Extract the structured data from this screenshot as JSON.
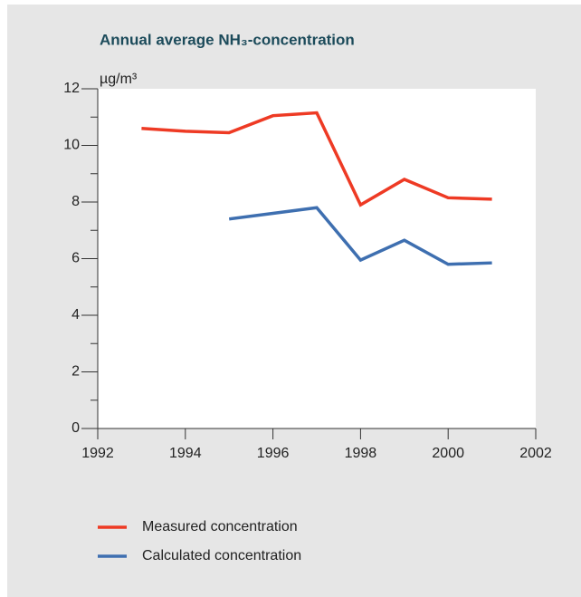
{
  "chart_data": {
    "type": "line",
    "title": "Annual average NH₃-concentration",
    "y_label": "µg/m³",
    "x": [
      1993,
      1994,
      1995,
      1996,
      1997,
      1998,
      1999,
      2000,
      2001
    ],
    "series": [
      {
        "name": "Measured concentration",
        "color": "#ee3a24",
        "values": [
          10.6,
          10.5,
          10.45,
          11.05,
          11.15,
          7.9,
          8.8,
          8.15,
          8.1
        ]
      },
      {
        "name": "Calculated concentration",
        "color": "#3e6fb0",
        "values": [
          null,
          null,
          7.4,
          7.6,
          7.8,
          5.95,
          6.65,
          5.8,
          5.85
        ]
      }
    ],
    "xlim": [
      1992,
      2002
    ],
    "xticks": [
      1992,
      1994,
      1996,
      1998,
      2000,
      2002
    ],
    "ylim": [
      0,
      12
    ],
    "yticks": [
      0,
      2,
      4,
      6,
      8,
      10,
      12
    ],
    "y_minor_ticks": [
      1,
      3,
      5,
      7,
      9,
      11
    ],
    "grid": false,
    "legend": "bottom"
  }
}
